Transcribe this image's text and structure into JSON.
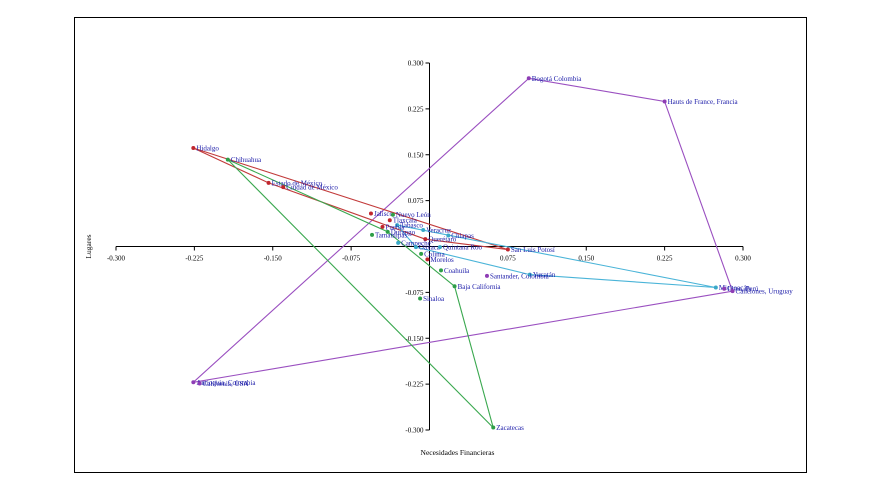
{
  "chart_data": {
    "type": "scatter",
    "xlabel": "Necesidades Financieras",
    "ylabel": "Lugares",
    "xlim": [
      -0.3,
      0.3
    ],
    "ylim": [
      -0.3,
      0.3
    ],
    "xticks": [
      "-0.300",
      "-0.225",
      "-0.150",
      "-0.075",
      "0.075",
      "0.150",
      "0.225",
      "0.300"
    ],
    "yticks": [
      "0.300",
      "0.225",
      "0.150",
      "0.075",
      "-0.075",
      "-0.150",
      "-0.225",
      "-0.300"
    ],
    "points": [
      {
        "label": "Bogotá Colombia",
        "x": 0.095,
        "y": 0.275,
        "color": "#8e3db5"
      },
      {
        "label": "Hauts de France, Francia",
        "x": 0.225,
        "y": 0.237,
        "color": "#8e3db5"
      },
      {
        "label": "Hidalgo",
        "x": -0.226,
        "y": 0.161,
        "color": "#c0262e"
      },
      {
        "label": "Chihuahua",
        "x": -0.193,
        "y": 0.142,
        "color": "#2e9e48"
      },
      {
        "label": "Estado de México",
        "x": -0.154,
        "y": 0.104,
        "color": "#c0262e"
      },
      {
        "label": "Ciudad de México",
        "x": -0.14,
        "y": 0.097,
        "color": "#c0262e"
      },
      {
        "label": "Jalisco",
        "x": -0.056,
        "y": 0.054,
        "color": "#c0262e"
      },
      {
        "label": "Nuevo León",
        "x": -0.035,
        "y": 0.052,
        "color": "#2e9e48"
      },
      {
        "label": "Tlaxcala",
        "x": -0.038,
        "y": 0.043,
        "color": "#c0262e"
      },
      {
        "label": "Tabasco",
        "x": -0.031,
        "y": 0.035,
        "color": "#3aa8c8"
      },
      {
        "label": "Veracruz",
        "x": -0.006,
        "y": 0.027,
        "color": "#3aa8c8"
      },
      {
        "label": "Puebla",
        "x": -0.045,
        "y": 0.032,
        "color": "#c0262e"
      },
      {
        "label": "Durango",
        "x": -0.04,
        "y": 0.024,
        "color": "#2e9e48"
      },
      {
        "label": "Tamaulipas",
        "x": -0.055,
        "y": 0.019,
        "color": "#2e9e48"
      },
      {
        "label": "Chiapas",
        "x": 0.018,
        "y": 0.018,
        "color": "#3aa8c8"
      },
      {
        "label": "Querétaro",
        "x": -0.004,
        "y": 0.012,
        "color": "#c0262e"
      },
      {
        "label": "Campeche",
        "x": -0.03,
        "y": 0.006,
        "color": "#3aa8c8"
      },
      {
        "label": "Oaxaca",
        "x": -0.013,
        "y": -0.001,
        "color": "#3aa8c8"
      },
      {
        "label": "Quintana Roo",
        "x": 0.01,
        "y": -0.001,
        "color": "#3aa8c8"
      },
      {
        "label": "San Luis Potosí",
        "x": 0.075,
        "y": -0.005,
        "color": "#c0262e"
      },
      {
        "label": "Colima",
        "x": -0.008,
        "y": -0.012,
        "color": "#2e9e48"
      },
      {
        "label": "Morelos",
        "x": -0.002,
        "y": -0.021,
        "color": "#c0262e"
      },
      {
        "label": "Coahuila",
        "x": 0.011,
        "y": -0.039,
        "color": "#2e9e48"
      },
      {
        "label": "Yucatán",
        "x": 0.096,
        "y": -0.046,
        "color": "#3aa8c8"
      },
      {
        "label": "Santander, Colombia",
        "x": 0.055,
        "y": -0.048,
        "color": "#8e3db5"
      },
      {
        "label": "Baja California",
        "x": 0.024,
        "y": -0.065,
        "color": "#2e9e48"
      },
      {
        "label": "Michoacán",
        "x": 0.274,
        "y": -0.067,
        "color": "#3aa8c8"
      },
      {
        "label": "Lima, Perú",
        "x": 0.282,
        "y": -0.069,
        "color": "#8e3db5"
      },
      {
        "label": "Canelones, Uruguay",
        "x": 0.29,
        "y": -0.073,
        "color": "#8e3db5"
      },
      {
        "label": "Sinaloa",
        "x": -0.009,
        "y": -0.085,
        "color": "#2e9e48"
      },
      {
        "label": "Antioquia, Colombia",
        "x": -0.226,
        "y": -0.222,
        "color": "#8e3db5"
      },
      {
        "label": "California, USA",
        "x": -0.22,
        "y": -0.224,
        "color": "#8e3db5"
      },
      {
        "label": "Zacatecas",
        "x": 0.061,
        "y": -0.296,
        "color": "#2e9e48"
      }
    ],
    "series": [
      {
        "name": "purple",
        "color": "#9a4fc0",
        "path": [
          [
            -0.226,
            -0.222
          ],
          [
            0.095,
            0.275
          ],
          [
            0.225,
            0.237
          ],
          [
            0.29,
            -0.073
          ],
          [
            -0.226,
            -0.222
          ]
        ]
      },
      {
        "name": "red",
        "color": "#c23a3a",
        "path": [
          [
            -0.226,
            0.161
          ],
          [
            0.075,
            -0.005
          ],
          [
            -0.004,
            0.012
          ],
          [
            -0.154,
            0.104
          ],
          [
            -0.226,
            0.161
          ]
        ]
      },
      {
        "name": "green",
        "color": "#3aa84f",
        "path": [
          [
            -0.193,
            0.142
          ],
          [
            0.061,
            -0.296
          ],
          [
            0.024,
            -0.065
          ],
          [
            -0.04,
            0.024
          ],
          [
            -0.193,
            0.142
          ]
        ]
      },
      {
        "name": "cyan",
        "color": "#4ab4d8",
        "path": [
          [
            -0.031,
            0.035
          ],
          [
            0.274,
            -0.067
          ],
          [
            0.096,
            -0.046
          ],
          [
            -0.013,
            -0.001
          ],
          [
            -0.031,
            0.035
          ]
        ]
      }
    ]
  }
}
